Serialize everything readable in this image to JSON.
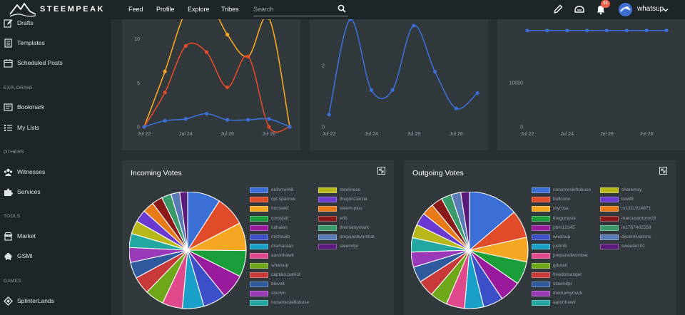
{
  "app": {
    "brand": "STEEMPEAK"
  },
  "nav": [
    {
      "label": "Feed"
    },
    {
      "label": "Profile"
    },
    {
      "label": "Explore"
    },
    {
      "label": "Tribes"
    }
  ],
  "search": {
    "placeholder": "Search",
    "value": ""
  },
  "notifications": {
    "count": "36"
  },
  "user": {
    "name": "whatsup"
  },
  "icons": {
    "logo": "steempeak-mountain-logo",
    "search": "search-icon",
    "edit": "pencil-icon",
    "wallet": "wallet-icon",
    "bell": "bell-icon",
    "caret": "chevron-down-icon"
  },
  "sidebar": {
    "items": [
      {
        "label": "Drafts",
        "icon": "drafts-icon"
      },
      {
        "label": "Templates",
        "icon": "templates-icon"
      },
      {
        "label": "Scheduled Posts",
        "icon": "calendar-icon"
      },
      {
        "label": "Bookmark",
        "icon": "bookmark-icon"
      },
      {
        "label": "My Lists",
        "icon": "list-icon"
      },
      {
        "label": "Witnesses",
        "icon": "witnesses-icon"
      },
      {
        "label": "Services",
        "icon": "puzzle-icon"
      },
      {
        "label": "Market",
        "icon": "market-icon"
      },
      {
        "label": "GSMI",
        "icon": "piggy-bank-icon"
      },
      {
        "label": "SplinterLands",
        "icon": "splinterlands-icon"
      }
    ],
    "sections": {
      "exploring": "EXPLORING",
      "others": "OTHERS",
      "tools": "TOOLS",
      "games": "GAMES"
    }
  },
  "colors": {
    "accent": "#3c6fd6",
    "orange": "#f5a623",
    "red": "#e04b2a",
    "background": "#283034",
    "card": "#31393d",
    "sidebar": "#1e2528"
  },
  "chart_data": [
    {
      "type": "line",
      "x": [
        "Jul 22",
        "Jul 23",
        "Jul 24",
        "Jul 25",
        "Jul 26",
        "Jul 27",
        "Jul 28",
        "Jul 29"
      ],
      "xticks": [
        "Jul 22",
        "Jul 24",
        "Jul 26",
        "Jul 28"
      ],
      "yticks": [
        "0",
        "5",
        "10"
      ],
      "ylim": [
        0,
        15
      ],
      "series": [
        {
          "color": "#f5a623",
          "values": [
            0,
            6.3,
            13.1,
            14.6,
            10.5,
            8,
            12.4,
            0
          ]
        },
        {
          "color": "#e04b2a",
          "values": [
            0,
            3.9,
            9.2,
            8.5,
            4.5,
            8.0,
            0,
            0
          ]
        },
        {
          "color": "#3c6fd6",
          "values": [
            0,
            0.7,
            0.9,
            1.5,
            0.8,
            0.8,
            0.9,
            0
          ]
        }
      ]
    },
    {
      "type": "line",
      "x": [
        "Jul 22",
        "Jul 23",
        "Jul 24",
        "Jul 25",
        "Jul 26",
        "Jul 27",
        "Jul 28",
        "Jul 29"
      ],
      "xticks": [
        "Jul 22",
        "Jul 24",
        "Jul 26",
        "Jul 28"
      ],
      "yticks": [
        "0",
        "2"
      ],
      "ylim": [
        0,
        3.6
      ],
      "series": [
        {
          "color": "#3c6fd6",
          "values": [
            0.4,
            3.5,
            1.2,
            1.2,
            3.3,
            1.8,
            0.6,
            1.1
          ]
        }
      ]
    },
    {
      "type": "line",
      "x": [
        "Jul 22",
        "Jul 23",
        "Jul 24",
        "Jul 25",
        "Jul 26",
        "Jul 27",
        "Jul 28",
        "Jul 29"
      ],
      "xticks": [
        "Jul 22",
        "Jul 24",
        "Jul 26",
        "Jul 28"
      ],
      "yticks": [
        "0",
        "10000"
      ],
      "ylim": [
        0,
        25000
      ],
      "series": [
        {
          "color": "#3c6fd6",
          "values": [
            21800,
            21800,
            21800,
            21800,
            21800,
            21800,
            21800,
            21800
          ]
        }
      ]
    },
    {
      "type": "pie",
      "title": "Incoming Votes",
      "slices": [
        {
          "label": "enforcer48",
          "color": "#3c6fd6",
          "value": 7.5
        },
        {
          "label": "cpt-sparrow",
          "color": "#e04b2a",
          "value": 6.8
        },
        {
          "label": "hoosiekf",
          "color": "#f5a623",
          "value": 6.4
        },
        {
          "label": "coreyjalt",
          "color": "#1a9e3a",
          "value": 6.0
        },
        {
          "label": "luthaien",
          "color": "#9a1a9e",
          "value": 5.6
        },
        {
          "label": "michealb",
          "color": "#3b4fc8",
          "value": 5.2
        },
        {
          "label": "dramaolan",
          "color": "#1aa0c8",
          "value": 4.9
        },
        {
          "label": "aaronhawk",
          "color": "#e04a8c",
          "value": 4.6
        },
        {
          "label": "whatsup",
          "color": "#6ea81a",
          "value": 4.3
        },
        {
          "label": "captain.patriot",
          "color": "#c83a3a",
          "value": 4.0
        },
        {
          "label": "bievolt",
          "color": "#2f5a9e",
          "value": 3.7
        },
        {
          "label": "stackin",
          "color": "#9a3ab8",
          "value": 3.4
        },
        {
          "label": "nonamesleftobuse",
          "color": "#22a8a0",
          "value": 3.2
        },
        {
          "label": "steeliness",
          "color": "#b8b81a",
          "value": 3.0
        },
        {
          "label": "thegonzanzia",
          "color": "#6a3ad0",
          "value": 2.8
        },
        {
          "label": "steem-plus",
          "color": "#e87a1a",
          "value": 2.6
        },
        {
          "label": "etfb",
          "color": "#8a1a1a",
          "value": 2.4
        },
        {
          "label": "themarkymark",
          "color": "#3a9a6a",
          "value": 2.2
        },
        {
          "label": "preparedwombat",
          "color": "#5a7ab8",
          "value": 2.0
        },
        {
          "label": "steemitpi",
          "color": "#5a1a7a",
          "value": 1.8
        }
      ]
    },
    {
      "type": "pie",
      "title": "Outgoing Votes",
      "slices": [
        {
          "label": "nonamesleftobuse",
          "color": "#3c6fd6",
          "value": 12.5
        },
        {
          "label": "bullcone",
          "color": "#e04b2a",
          "value": 7.0
        },
        {
          "label": "royrosa",
          "color": "#f5a623",
          "value": 6.2
        },
        {
          "label": "thegunasia",
          "color": "#1a9e3a",
          "value": 5.8
        },
        {
          "label": "pbm12345",
          "color": "#9a1a9e",
          "value": 5.4
        },
        {
          "label": "whatsup",
          "color": "#3b4fc8",
          "value": 5.0
        },
        {
          "label": "justinB",
          "color": "#1aa0c8",
          "value": 4.8
        },
        {
          "label": "preparedwombat",
          "color": "#e04a8c",
          "value": 4.6
        },
        {
          "label": "gduran",
          "color": "#6ea81a",
          "value": 4.4
        },
        {
          "label": "freedomanget",
          "color": "#c83a3a",
          "value": 4.2
        },
        {
          "label": "steemitpi",
          "color": "#2f5a9e",
          "value": 4.0
        },
        {
          "label": "themarkymark",
          "color": "#9a3ab8",
          "value": 3.8
        },
        {
          "label": "aaronhawk",
          "color": "#22a8a0",
          "value": 3.6
        },
        {
          "label": "cheremay",
          "color": "#b8b81a",
          "value": 3.4
        },
        {
          "label": "bowfit",
          "color": "#6a3ad0",
          "value": 3.2
        },
        {
          "label": "m1311914671",
          "color": "#e87a1a",
          "value": 3.0
        },
        {
          "label": "marcusantone28",
          "color": "#8a1a1a",
          "value": 2.8
        },
        {
          "label": "m1787402559",
          "color": "#3a9a6a",
          "value": 2.6
        },
        {
          "label": "decentivations",
          "color": "#5a7ab8",
          "value": 2.4
        },
        {
          "label": "sweetie101",
          "color": "#5a1a7a",
          "value": 2.2
        }
      ]
    }
  ]
}
